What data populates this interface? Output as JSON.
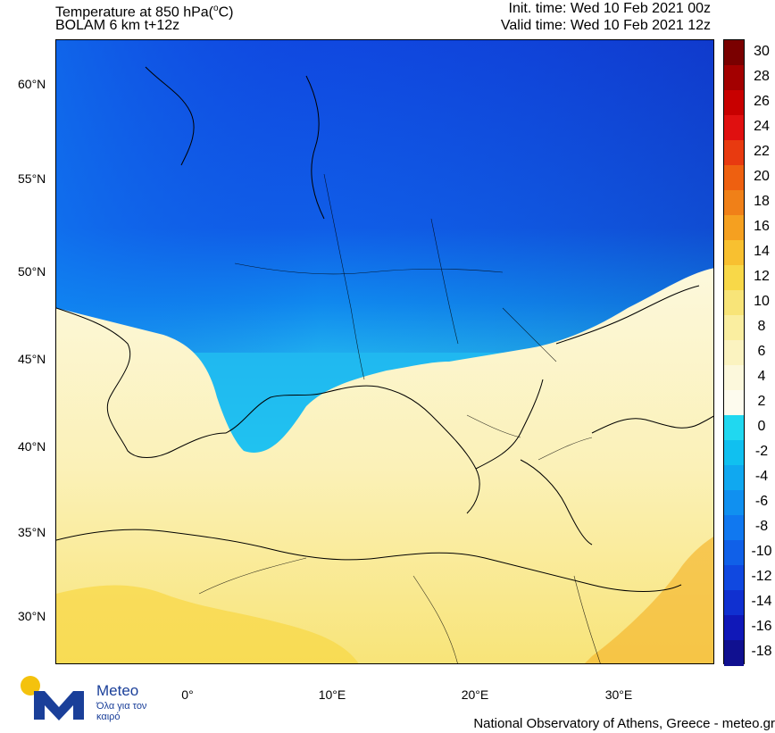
{
  "header": {
    "title_line1_prefix": "Temperature at 850 hPa(",
    "title_line1_sup": "o",
    "title_line1_suffix": "C)",
    "title_line2": "BOLAM 6 km t+12z",
    "init_time": "Init. time: Wed 10 Feb 2021 00z",
    "valid_time": "Valid time: Wed 10 Feb 2021 12z"
  },
  "map": {
    "lat_labels": [
      "60°N",
      "55°N",
      "50°N",
      "45°N",
      "40°N",
      "35°N",
      "30°N"
    ],
    "lon_labels": [
      "0°",
      "10°E",
      "20°E",
      "30°E"
    ]
  },
  "colorbar": {
    "labels": [
      "30",
      "28",
      "26",
      "24",
      "22",
      "20",
      "18",
      "16",
      "14",
      "12",
      "10",
      "8",
      "6",
      "4",
      "2",
      "0",
      "-2",
      "-4",
      "-6",
      "-8",
      "-10",
      "-12",
      "-14",
      "-16",
      "-18"
    ],
    "colors": [
      "#7a0000",
      "#a30000",
      "#c80000",
      "#e01010",
      "#e83a10",
      "#ee6010",
      "#f08018",
      "#f5a020",
      "#f8c030",
      "#f8d848",
      "#f8e478",
      "#faeea0",
      "#fbf3c0",
      "#fcf8dc",
      "#fdfbee",
      "#20d8f0",
      "#10c0f0",
      "#10a8f0",
      "#1090f0",
      "#1078f0",
      "#1060e8",
      "#1048e0",
      "#1030d0",
      "#1018b8",
      "#101090"
    ]
  },
  "logo": {
    "name": "Meteo",
    "slogan": "Όλα για τον καιρό"
  },
  "credit": "National Observatory of Athens, Greece - meteo.gr"
}
